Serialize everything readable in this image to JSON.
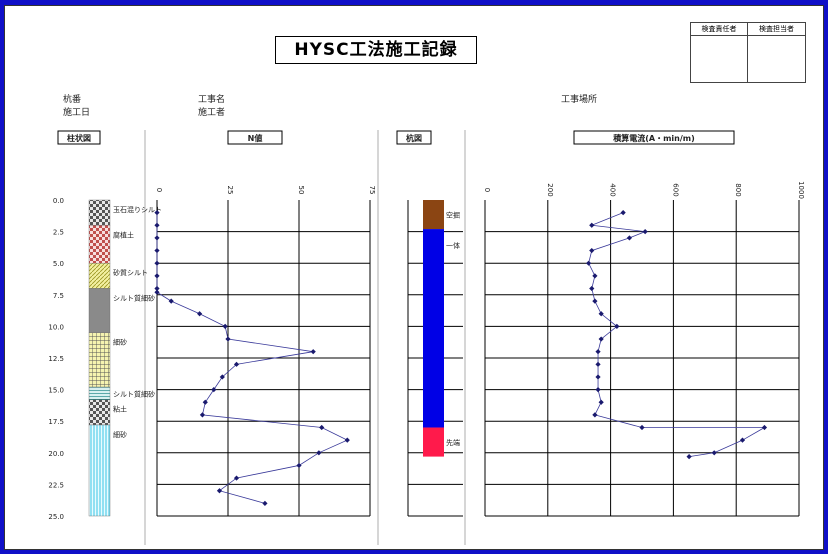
{
  "title": "HYSC工法施工記録",
  "stamp": {
    "col1": "検査責任者",
    "col2": "検査担当者"
  },
  "info": {
    "pile_no": "杭番",
    "date": "施工日",
    "work_name": "工事名",
    "builder": "施工者",
    "site": "工事場所"
  },
  "colors": {
    "frame": "#1010c8",
    "marker": "#1a1a6e",
    "grid": "#000000"
  },
  "chart_data": [
    {
      "type": "table",
      "title": "柱状図",
      "depth_ticks": [
        "0.0",
        "2.5",
        "5.0",
        "7.5",
        "10.0",
        "12.5",
        "15.0",
        "17.5",
        "20.0",
        "22.5",
        "25.0"
      ],
      "layers": [
        {
          "top": 0.0,
          "bottom": 2.0,
          "label": "玉石混りシルト",
          "pattern": "checker-gray"
        },
        {
          "top": 2.0,
          "bottom": 5.0,
          "label": "腐植土",
          "pattern": "checker-red"
        },
        {
          "top": 5.0,
          "bottom": 7.0,
          "label": "砂質シルト",
          "pattern": "yellow-hatch"
        },
        {
          "top": 7.0,
          "bottom": 10.5,
          "label": "シルト質細砂",
          "pattern": "gray"
        },
        {
          "top": 10.5,
          "bottom": 14.8,
          "label": "細砂",
          "pattern": "yellow-grid"
        },
        {
          "top": 14.8,
          "bottom": 15.8,
          "label": "シルト質細砂",
          "pattern": "teal-lines"
        },
        {
          "top": 15.8,
          "bottom": 17.8,
          "label": "粘土",
          "pattern": "checker-gray"
        },
        {
          "top": 17.8,
          "bottom": 25.0,
          "label": "細砂",
          "pattern": "cyan-lines"
        }
      ]
    },
    {
      "type": "line",
      "title": "N値",
      "xlim": [
        0,
        75
      ],
      "xticks": [
        "0",
        "25",
        "50",
        "75"
      ],
      "ylim": [
        0,
        25
      ],
      "points": [
        [
          0,
          1
        ],
        [
          0,
          2
        ],
        [
          0,
          3
        ],
        [
          0,
          4
        ],
        [
          0,
          5
        ],
        [
          0,
          6
        ],
        [
          0,
          7
        ],
        [
          0,
          7.3
        ],
        [
          5,
          8
        ],
        [
          15,
          9
        ],
        [
          24,
          10
        ],
        [
          25,
          11
        ],
        [
          55,
          12
        ],
        [
          28,
          13
        ],
        [
          23,
          14
        ],
        [
          20,
          15
        ],
        [
          17,
          16
        ],
        [
          16,
          17
        ],
        [
          58,
          18
        ],
        [
          67,
          19
        ],
        [
          57,
          20
        ],
        [
          50,
          21
        ],
        [
          28,
          22
        ],
        [
          22,
          23
        ],
        [
          38,
          24
        ]
      ]
    },
    {
      "type": "bar",
      "title": "杭図",
      "ylim": [
        0,
        25
      ],
      "segments": [
        {
          "top": 0.0,
          "bottom": 2.3,
          "label": "空掘",
          "color": "#8b4513"
        },
        {
          "top": 2.3,
          "bottom": 18.0,
          "label": "一体",
          "color": "#0000e6"
        },
        {
          "top": 18.0,
          "bottom": 20.3,
          "label": "先端",
          "color": "#ff1a4b"
        }
      ]
    },
    {
      "type": "line",
      "title": "積算電流(A・min/m)",
      "xlim": [
        0,
        1000
      ],
      "xticks": [
        "0",
        "200",
        "400",
        "600",
        "800",
        "1000"
      ],
      "ylim": [
        0,
        25
      ],
      "points": [
        [
          440,
          1
        ],
        [
          340,
          2
        ],
        [
          510,
          2.5
        ],
        [
          460,
          3
        ],
        [
          340,
          4
        ],
        [
          330,
          5
        ],
        [
          350,
          6
        ],
        [
          340,
          7
        ],
        [
          350,
          8
        ],
        [
          370,
          9
        ],
        [
          420,
          10
        ],
        [
          370,
          11
        ],
        [
          360,
          12
        ],
        [
          360,
          13
        ],
        [
          360,
          14
        ],
        [
          360,
          15
        ],
        [
          370,
          16
        ],
        [
          350,
          17
        ],
        [
          500,
          18
        ],
        [
          890,
          18
        ],
        [
          820,
          19
        ],
        [
          730,
          20
        ],
        [
          650,
          20.3
        ]
      ]
    }
  ]
}
